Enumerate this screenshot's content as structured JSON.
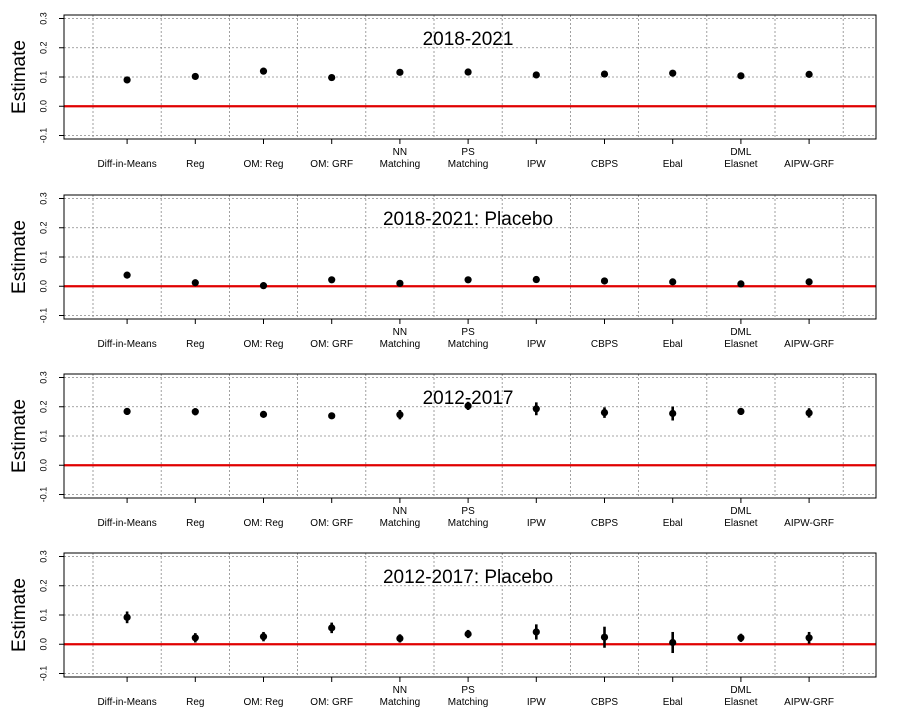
{
  "chart_data": [
    {
      "type": "scatter",
      "title": "2018-2021",
      "ylabel": "Estimate",
      "ylim": [
        -0.1,
        0.3
      ],
      "yticks": [
        "-0.1",
        "0.0",
        "0.1",
        "0.2",
        "0.3"
      ],
      "grid": true,
      "reference_line": {
        "y": 0,
        "color": "#e00000"
      },
      "categories": [
        [
          "Diff-in-Means"
        ],
        [
          "Reg"
        ],
        [
          "OM: Reg"
        ],
        [
          "OM: GRF"
        ],
        [
          "NN",
          "Matching"
        ],
        [
          "PS",
          "Matching"
        ],
        [
          "IPW"
        ],
        [
          "CBPS"
        ],
        [
          "Ebal"
        ],
        [
          "DML",
          "Elasnet"
        ],
        [
          "AIPW-GRF"
        ]
      ],
      "estimates": [
        0.09,
        0.102,
        0.12,
        0.098,
        0.116,
        0.117,
        0.107,
        0.11,
        0.113,
        0.104,
        0.109
      ],
      "ci_low": [
        0.084,
        0.096,
        0.114,
        0.092,
        0.108,
        0.111,
        0.1,
        0.104,
        0.106,
        0.098,
        0.103
      ],
      "ci_high": [
        0.096,
        0.108,
        0.126,
        0.104,
        0.124,
        0.123,
        0.114,
        0.116,
        0.12,
        0.11,
        0.115
      ]
    },
    {
      "type": "scatter",
      "title": "2018-2021: Placebo",
      "ylabel": "Estimate",
      "ylim": [
        -0.1,
        0.3
      ],
      "yticks": [
        "-0.1",
        "0.0",
        "0.1",
        "0.2",
        "0.3"
      ],
      "grid": true,
      "reference_line": {
        "y": 0,
        "color": "#e00000"
      },
      "categories": [
        [
          "Diff-in-Means"
        ],
        [
          "Reg"
        ],
        [
          "OM: Reg"
        ],
        [
          "OM: GRF"
        ],
        [
          "NN",
          "Matching"
        ],
        [
          "PS",
          "Matching"
        ],
        [
          "IPW"
        ],
        [
          "CBPS"
        ],
        [
          "Ebal"
        ],
        [
          "DML",
          "Elasnet"
        ],
        [
          "AIPW-GRF"
        ]
      ],
      "estimates": [
        0.038,
        0.012,
        0.002,
        0.022,
        0.01,
        0.022,
        0.023,
        0.018,
        0.015,
        0.008,
        0.015
      ],
      "ci_low": [
        0.032,
        0.007,
        -0.002,
        0.016,
        0.004,
        0.016,
        0.014,
        0.01,
        0.008,
        0.002,
        0.009
      ],
      "ci_high": [
        0.044,
        0.017,
        0.006,
        0.028,
        0.016,
        0.028,
        0.032,
        0.026,
        0.022,
        0.014,
        0.021
      ]
    },
    {
      "type": "scatter",
      "title": "2012-2017",
      "ylabel": "Estimate",
      "ylim": [
        -0.1,
        0.3
      ],
      "yticks": [
        "-0.1",
        "0.0",
        "0.1",
        "0.2",
        "0.3"
      ],
      "grid": true,
      "reference_line": {
        "y": 0,
        "color": "#e00000"
      },
      "categories": [
        [
          "Diff-in-Means"
        ],
        [
          "Reg"
        ],
        [
          "OM: Reg"
        ],
        [
          "OM: GRF"
        ],
        [
          "NN",
          "Matching"
        ],
        [
          "PS",
          "Matching"
        ],
        [
          "IPW"
        ],
        [
          "CBPS"
        ],
        [
          "Ebal"
        ],
        [
          "DML",
          "Elasnet"
        ],
        [
          "AIPW-GRF"
        ]
      ],
      "estimates": [
        0.184,
        0.183,
        0.174,
        0.169,
        0.173,
        0.203,
        0.193,
        0.18,
        0.177,
        0.184,
        0.179
      ],
      "ci_low": [
        0.172,
        0.171,
        0.166,
        0.162,
        0.157,
        0.189,
        0.171,
        0.162,
        0.153,
        0.172,
        0.163
      ],
      "ci_high": [
        0.196,
        0.195,
        0.182,
        0.176,
        0.189,
        0.217,
        0.215,
        0.198,
        0.201,
        0.196,
        0.195
      ]
    },
    {
      "type": "scatter",
      "title": "2012-2017: Placebo",
      "ylabel": "Estimate",
      "ylim": [
        -0.1,
        0.3
      ],
      "yticks": [
        "-0.1",
        "0.0",
        "0.1",
        "0.2",
        "0.3"
      ],
      "grid": true,
      "reference_line": {
        "y": 0,
        "color": "#e00000"
      },
      "categories": [
        [
          "Diff-in-Means"
        ],
        [
          "Reg"
        ],
        [
          "OM: Reg"
        ],
        [
          "OM: GRF"
        ],
        [
          "NN",
          "Matching"
        ],
        [
          "PS",
          "Matching"
        ],
        [
          "IPW"
        ],
        [
          "CBPS"
        ],
        [
          "Ebal"
        ],
        [
          "DML",
          "Elasnet"
        ],
        [
          "AIPW-GRF"
        ]
      ],
      "estimates": [
        0.092,
        0.022,
        0.026,
        0.056,
        0.02,
        0.035,
        0.042,
        0.024,
        0.006,
        0.022,
        0.022
      ],
      "ci_low": [
        0.072,
        0.006,
        0.01,
        0.038,
        0.006,
        0.021,
        0.016,
        -0.012,
        -0.03,
        0.008,
        0.002
      ],
      "ci_high": [
        0.112,
        0.038,
        0.042,
        0.074,
        0.034,
        0.049,
        0.068,
        0.06,
        0.042,
        0.036,
        0.042
      ]
    }
  ]
}
